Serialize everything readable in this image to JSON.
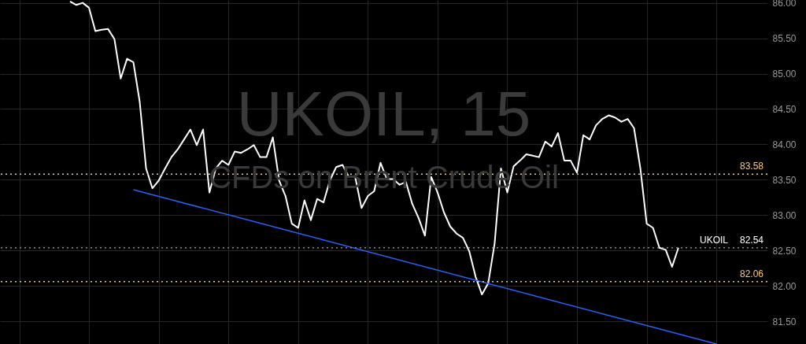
{
  "chart_data": {
    "type": "line",
    "title": "UKOIL, 15",
    "subtitle": "CFDs on Brent Crude Oil",
    "categories": [
      null,
      null,
      null,
      null,
      null,
      null,
      null,
      null,
      null,
      null,
      null,
      null,
      null,
      null,
      null,
      null,
      null,
      null,
      null,
      null,
      null,
      null,
      null,
      null,
      null,
      null,
      null,
      null,
      null,
      null,
      null,
      null,
      null,
      null,
      null,
      null,
      null,
      null,
      null,
      null,
      null,
      null,
      null,
      null,
      null,
      null,
      null,
      null,
      null,
      null,
      null,
      null,
      null,
      null,
      null,
      null,
      null,
      null,
      null,
      null,
      null,
      null,
      null,
      null,
      null,
      null,
      null,
      null,
      null,
      null,
      null,
      null,
      null,
      null,
      null,
      null,
      null,
      null,
      null,
      null,
      null,
      null,
      null,
      null,
      null,
      null,
      null,
      null,
      null,
      null,
      null,
      null,
      null,
      null,
      null,
      null,
      null,
      null,
      null,
      null,
      null,
      null,
      null,
      null,
      null,
      null,
      null,
      null,
      null,
      null,
      null,
      null,
      null,
      null,
      null,
      null,
      null,
      null,
      null,
      null,
      null,
      null
    ],
    "series": [
      {
        "color": "#ffffff",
        "values": [
          null,
          null,
          null,
          null,
          null,
          null,
          null,
          null,
          null,
          null,
          null,
          86.02,
          85.97,
          86.0,
          85.93,
          85.6,
          85.62,
          85.63,
          85.49,
          84.93,
          85.21,
          85.16,
          84.6,
          83.66,
          83.38,
          83.49,
          83.66,
          83.82,
          83.93,
          84.07,
          84.21,
          83.99,
          84.21,
          83.32,
          83.66,
          83.77,
          83.71,
          83.9,
          83.88,
          83.93,
          83.99,
          83.82,
          83.82,
          84.1,
          83.49,
          83.27,
          82.88,
          82.82,
          83.21,
          82.93,
          83.23,
          83.18,
          83.49,
          83.68,
          83.71,
          83.54,
          83.54,
          83.1,
          83.27,
          83.34,
          83.74,
          83.51,
          83.51,
          83.43,
          83.47,
          83.16,
          82.96,
          82.71,
          83.54,
          83.32,
          83.04,
          82.84,
          82.74,
          82.68,
          82.49,
          82.13,
          81.88,
          82.04,
          82.6,
          83.66,
          83.32,
          83.69,
          83.77,
          83.86,
          83.84,
          83.82,
          84.04,
          83.97,
          84.16,
          83.77,
          83.77,
          83.6,
          84.13,
          84.07,
          84.27,
          84.36,
          84.41,
          84.38,
          84.32,
          84.36,
          84.23,
          83.66,
          82.88,
          82.82,
          82.54,
          82.51,
          82.27,
          82.54,
          null,
          null,
          null,
          null,
          null,
          null,
          null,
          null,
          null,
          null,
          null,
          null,
          null,
          null
        ]
      },
      {
        "type": "line",
        "color": "#2962ff",
        "values": [
          null,
          null,
          null,
          null,
          null,
          null,
          null,
          null,
          null,
          null,
          null,
          null,
          null,
          null,
          null,
          null,
          null,
          null,
          null,
          null,
          null,
          83.36,
          null,
          null,
          null,
          null,
          null,
          null,
          null,
          null,
          null,
          null,
          null,
          null,
          null,
          null,
          null,
          null,
          null,
          null,
          null,
          null,
          null,
          null,
          null,
          null,
          null,
          null,
          null,
          null,
          null,
          null,
          null,
          null,
          null,
          null,
          null,
          null,
          null,
          null,
          null,
          null,
          null,
          null,
          null,
          null,
          null,
          null,
          null,
          null,
          null,
          null,
          null,
          null,
          null,
          null,
          null,
          null,
          null,
          null,
          null,
          null,
          null,
          null,
          null,
          null,
          null,
          null,
          null,
          null,
          null,
          null,
          null,
          null,
          null,
          null,
          null,
          null,
          null,
          null,
          null,
          null,
          null,
          null,
          null,
          null,
          null,
          null,
          null,
          null,
          null,
          null,
          null,
          81.18,
          null,
          null,
          null,
          null,
          null,
          null,
          null,
          null
        ]
      }
    ],
    "ylim": [
      81.18,
      86.04
    ],
    "yticks": [
      {
        "value": 81.5,
        "label": "81.50"
      },
      {
        "value": 82,
        "label": "82.00"
      },
      {
        "value": 82.5,
        "label": "82.50"
      },
      {
        "value": 83,
        "label": "83.00"
      },
      {
        "value": 83.5,
        "label": "83.50"
      },
      {
        "value": 84,
        "label": "84.00"
      },
      {
        "value": 84.5,
        "label": "84.50"
      },
      {
        "value": 85,
        "label": "85.00"
      },
      {
        "value": 85.5,
        "label": "85.50"
      },
      {
        "value": 86,
        "label": "86.00"
      }
    ],
    "grid": true,
    "ref_lines": [
      {
        "axis": "y",
        "value": 83.58,
        "label": "83.58",
        "color": "#f5c97a",
        "line_style": "dotted"
      },
      {
        "axis": "y",
        "value": 82.06,
        "label": "82.06",
        "color": "#f5c97a",
        "line_style": "dotted"
      },
      {
        "axis": "y",
        "value": 82.54,
        "label": "82.54",
        "color": "#8a8a8a",
        "line_style": "dotted"
      }
    ],
    "annotations": [
      {
        "text": "UKOIL",
        "y": 82.54
      }
    ]
  }
}
